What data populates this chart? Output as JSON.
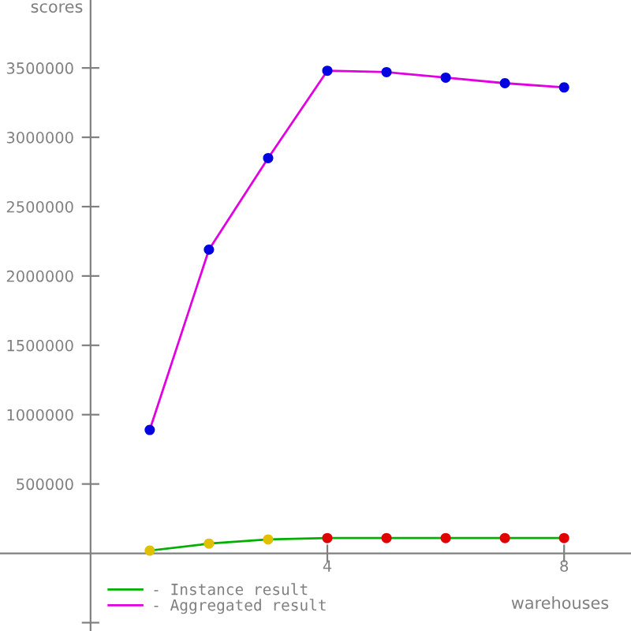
{
  "chart_data": {
    "type": "line",
    "xlabel": "warehouses",
    "ylabel": "scores",
    "x": [
      1,
      2,
      3,
      4,
      5,
      6,
      7,
      8
    ],
    "series": [
      {
        "name": "- Instance result",
        "color": "#00b000",
        "colors": [
          "#e0c000",
          "#e0c000",
          "#e0c000",
          "#e00000",
          "#e00000",
          "#e00000",
          "#e00000",
          "#e00000"
        ],
        "values": [
          20000,
          70000,
          100000,
          110000,
          110000,
          110000,
          110000,
          110000
        ]
      },
      {
        "name": "- Aggregated result",
        "color": "#e000e0",
        "colors": [
          "#0000e0",
          "#0000e0",
          "#0000e0",
          "#0000e0",
          "#0000e0",
          "#0000e0",
          "#0000e0",
          "#0000e0"
        ],
        "values": [
          890000,
          2190000,
          2850000,
          3480000,
          3470000,
          3430000,
          3390000,
          3360000
        ]
      }
    ],
    "xlim": [
      -1.53,
      9.13
    ],
    "ylim": [
      -560000,
      3990000
    ],
    "xticks": [
      4,
      8
    ],
    "yticks": [
      {
        "value": -500000,
        "label": null
      },
      500000,
      1000000,
      1500000,
      2000000,
      2500000,
      3000000,
      3500000
    ],
    "grid": false,
    "legend": "bottom left",
    "marker": "circle",
    "line_style": "solid"
  }
}
